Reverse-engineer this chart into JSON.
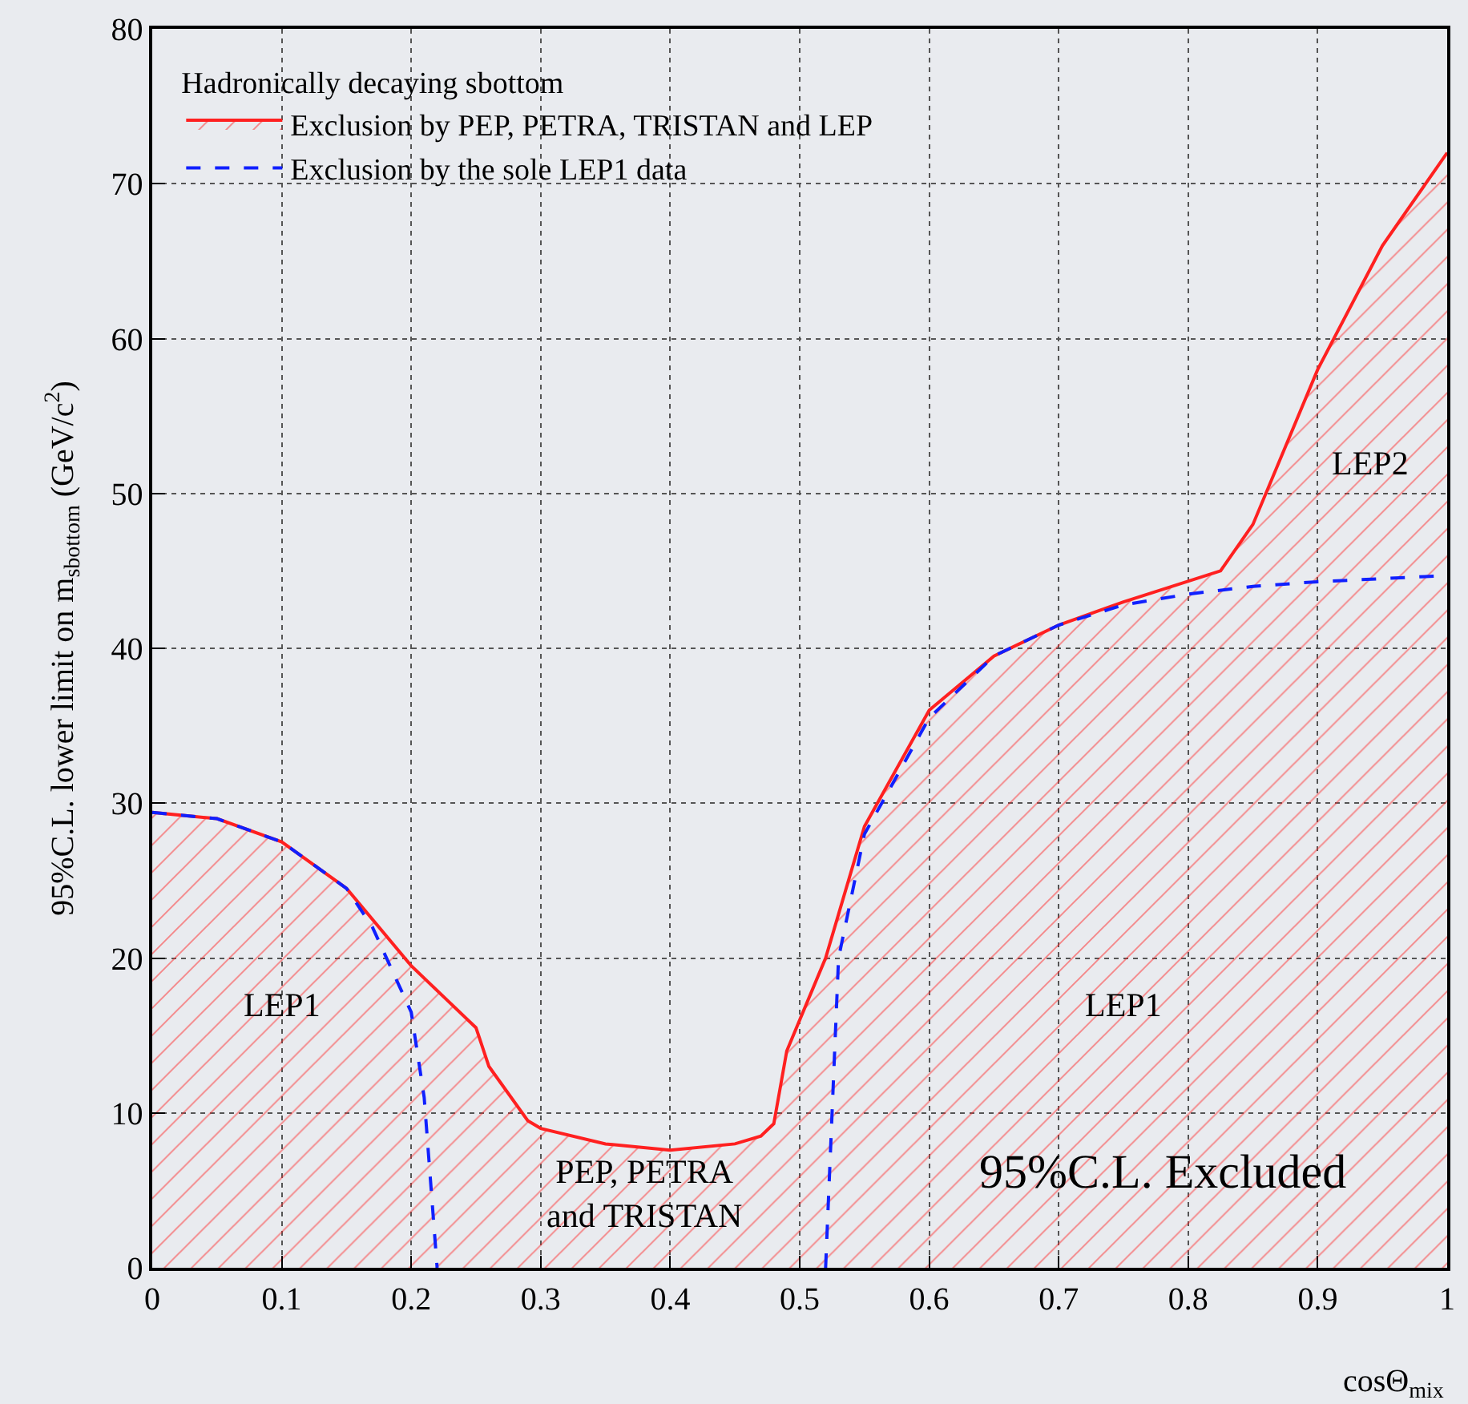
{
  "chart_data": {
    "type": "line",
    "xlabel": "cosΘ$_{mix}$",
    "ylabel": "95%C.L. lower limit on m$_{sbottom}$ (GeV/c$^{2}$)",
    "legend_title": "Hadronically decaying sbottom",
    "xlim": [
      0,
      1
    ],
    "xticks": [
      0,
      0.1,
      0.2,
      0.3,
      0.4,
      0.5,
      0.6,
      0.7,
      0.8,
      0.9,
      1
    ],
    "ylim": [
      0,
      80
    ],
    "yticks": [
      0,
      10,
      20,
      30,
      40,
      50,
      60,
      70,
      80
    ],
    "grid": true,
    "legend": "top left",
    "series": [
      {
        "name": "Exclusion by PEP, PETRA, TRISTAN and LEP",
        "type": "area",
        "color": "#ff2020",
        "line_style": "solid",
        "x": [
          0,
          0.05,
          0.1,
          0.15,
          0.2,
          0.25,
          0.26,
          0.29,
          0.3,
          0.35,
          0.4,
          0.45,
          0.47,
          0.48,
          0.49,
          0.52,
          0.55,
          0.6,
          0.65,
          0.7,
          0.75,
          0.825,
          0.85,
          0.9,
          0.95,
          1
        ],
        "values": [
          29.4,
          29,
          27.5,
          24.5,
          19.5,
          15.5,
          13,
          9.5,
          9,
          8,
          7.6,
          8,
          8.5,
          9.3,
          14,
          20,
          28.5,
          36,
          39.5,
          41.5,
          43,
          45,
          48,
          58,
          66,
          72
        ]
      },
      {
        "name": "Exclusion by the sole LEP1 data",
        "color": "#1020ff",
        "line_style": "dashed",
        "x": [
          0,
          0.05,
          0.1,
          0.15,
          0.17,
          0.2,
          0.21,
          0.22,
          0.37,
          0.52,
          0.53,
          0.55,
          0.6,
          0.65,
          0.7,
          0.75,
          0.8,
          0.85,
          0.9,
          1
        ],
        "values": [
          29.4,
          29,
          27.5,
          24.5,
          22,
          16.5,
          11,
          0,
          null,
          0,
          20,
          28,
          35.5,
          39.5,
          41.5,
          42.8,
          43.5,
          44,
          44.3,
          44.7
        ]
      }
    ],
    "annotations": [
      "LEP1",
      "PEP, PETRA\nand TRISTAN",
      "LEP1",
      "LEP2",
      "95%C.L. Excluded"
    ]
  }
}
